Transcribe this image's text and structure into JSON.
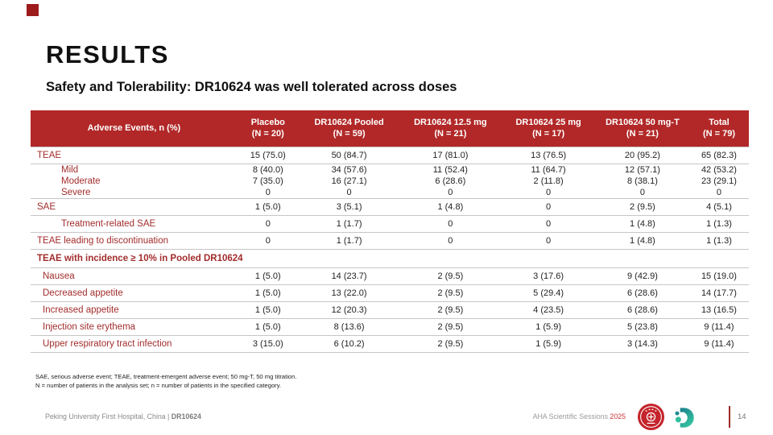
{
  "slide": {
    "title": "RESULTS",
    "subtitle": "Safety and Tolerability: DR10624 was well tolerated across doses"
  },
  "table": {
    "header": [
      {
        "line1": "Adverse Events, n (%)",
        "line2": ""
      },
      {
        "line1": "Placebo",
        "line2": "(N = 20)"
      },
      {
        "line1": "DR10624 Pooled",
        "line2": "(N = 59)"
      },
      {
        "line1": "DR10624 12.5 mg",
        "line2": "(N = 21)"
      },
      {
        "line1": "DR10624 25 mg",
        "line2": "(N = 17)"
      },
      {
        "line1": "DR10624 50 mg-T",
        "line2": "(N = 21)"
      },
      {
        "line1": "Total",
        "line2": "(N = 79)"
      }
    ],
    "rows": [
      {
        "label": "TEAE",
        "indent": 0,
        "values": [
          "15 (75.0)",
          "50 (84.7)",
          "17 (81.0)",
          "13 (76.5)",
          "20 (95.2)",
          "65 (82.3)"
        ]
      },
      {
        "label": "Mild",
        "indent": 1,
        "sub": true,
        "values": [
          "8 (40.0)",
          "34 (57.6)",
          "11 (52.4)",
          "11 (64.7)",
          "12 (57.1)",
          "42 (53.2)"
        ]
      },
      {
        "label": "Moderate",
        "indent": 1,
        "sub": true,
        "no_border": true,
        "values": [
          "7 (35.0)",
          "16 (27.1)",
          "6 (28.6)",
          "2 (11.8)",
          "8 (38.1)",
          "23 (29.1)"
        ]
      },
      {
        "label": "Severe",
        "indent": 1,
        "sub": true,
        "no_border": true,
        "values": [
          "0",
          "0",
          "0",
          "0",
          "0",
          "0"
        ]
      },
      {
        "label": "SAE",
        "indent": 0,
        "values": [
          "1 (5.0)",
          "3 (5.1)",
          "1 (4.8)",
          "0",
          "2 (9.5)",
          "4 (5.1)"
        ]
      },
      {
        "label": "Treatment-related SAE",
        "indent": 1,
        "values": [
          "0",
          "1 (1.7)",
          "0",
          "0",
          "1 (4.8)",
          "1 (1.3)"
        ]
      },
      {
        "label": "TEAE leading to discontinuation",
        "indent": 0,
        "values": [
          "0",
          "1 (1.7)",
          "0",
          "0",
          "1 (4.8)",
          "1 (1.3)"
        ]
      },
      {
        "label": "TEAE with incidence ≥ 10%  in Pooled DR10624",
        "section": true
      },
      {
        "label": "Nausea",
        "indent": 2,
        "values": [
          "1 (5.0)",
          "14 (23.7)",
          "2 (9.5)",
          "3 (17.6)",
          "9 (42.9)",
          "15 (19.0)"
        ]
      },
      {
        "label": "Decreased appetite",
        "indent": 2,
        "values": [
          "1 (5.0)",
          "13 (22.0)",
          "2 (9.5)",
          "5 (29.4)",
          "6 (28.6)",
          "14 (17.7)"
        ]
      },
      {
        "label": "Increased appetite",
        "indent": 2,
        "values": [
          "1 (5.0)",
          "12 (20.3)",
          "2 (9.5)",
          "4 (23.5)",
          "6 (28.6)",
          "13 (16.5)"
        ]
      },
      {
        "label": "Injection site erythema",
        "indent": 2,
        "values": [
          "1 (5.0)",
          "8 (13.6)",
          "2 (9.5)",
          "1 (5.9)",
          "5 (23.8)",
          "9 (11.4)"
        ]
      },
      {
        "label": "Upper respiratory tract infection",
        "indent": 2,
        "values": [
          "3 (15.0)",
          "6 (10.2)",
          "2 (9.5)",
          "1 (5.9)",
          "3 (14.3)",
          "9 (11.4)"
        ]
      }
    ]
  },
  "footnotes": {
    "line1": "SAE, serious adverse event; TEAE, treatment-emergent adverse event; 50 mg-T, 50 mg titration.",
    "line2": "N = number of patients in the analysis set; n = number of patients in the specified category."
  },
  "footer": {
    "left_text": "Peking University First Hospital, China | ",
    "left_strong": "DR10624",
    "right_text": "AHA Scientific Sessions ",
    "right_year": "2025",
    "page_number": "14"
  },
  "colors": {
    "header_bg": "#b22828",
    "row_label": "#a32c2c",
    "accent_square": "#9e1b1b",
    "year_red": "#d23434",
    "seal_red": "#c4242b",
    "logo_teal_dark": "#1b7f8c",
    "logo_teal_green": "#35c4a0"
  }
}
